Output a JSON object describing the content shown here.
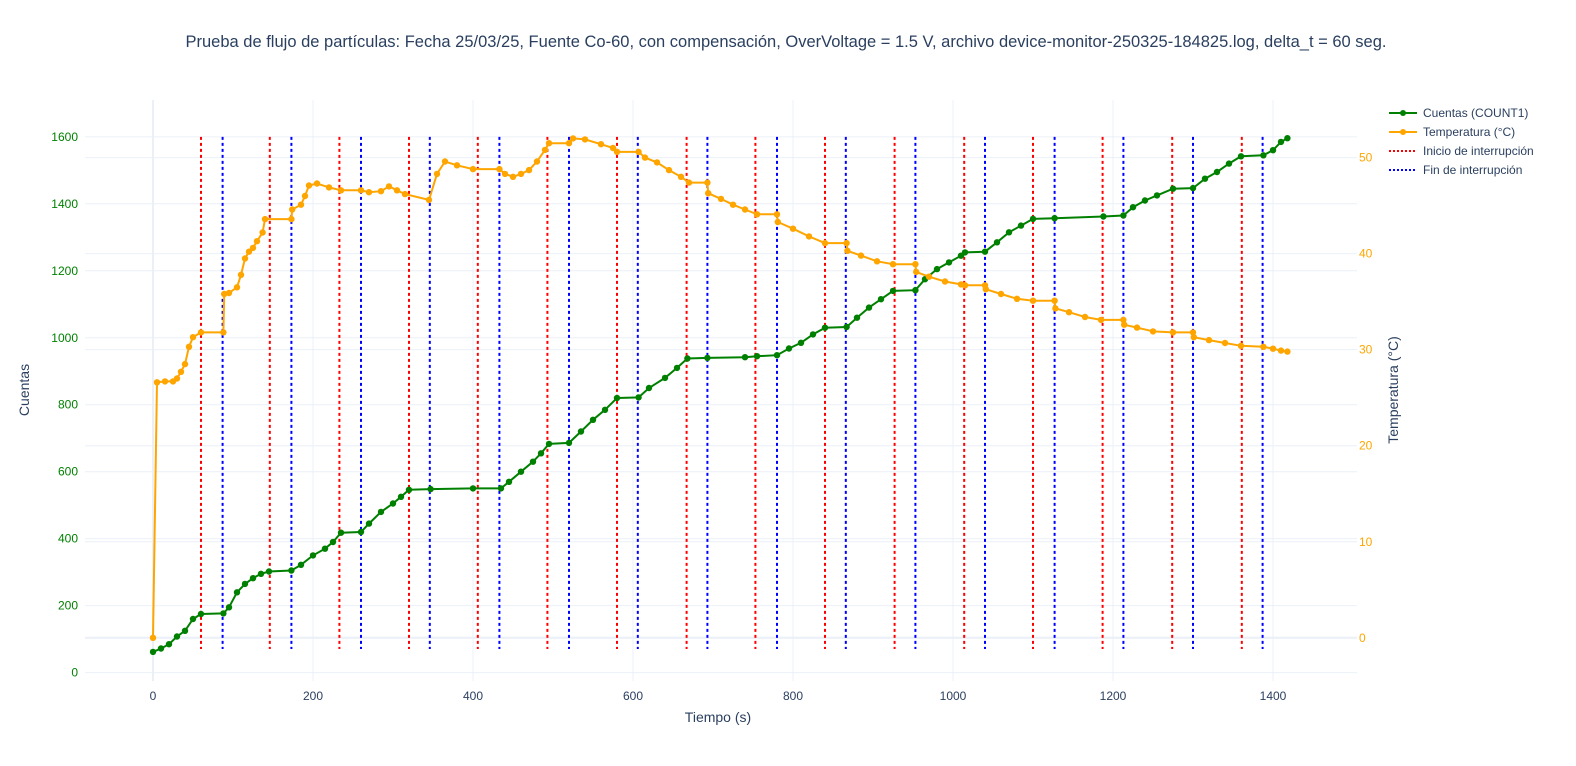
{
  "chart_data": {
    "type": "line",
    "title": "Prueba de flujo de partículas: Fecha 25/03/25, Fuente Co-60, con compensación, OverVoltage = 1.5 V, archivo device-monitor-250325-184825.log, delta_t = 60 seg.",
    "xlabel": "Tiempo (s)",
    "ylabel": "Cuentas",
    "y2label": "Temperatura (°C)",
    "xlim": [
      -85,
      1505
    ],
    "ylim": [
      -25,
      1710
    ],
    "y2lim": [
      -4.5,
      56
    ],
    "x_ticks": [
      0,
      200,
      400,
      600,
      800,
      1000,
      1200,
      1400
    ],
    "y_ticks": [
      0,
      200,
      400,
      600,
      800,
      1000,
      1200,
      1400,
      1600
    ],
    "y2_ticks": [
      0,
      10,
      20,
      30,
      40,
      50
    ],
    "grid": true,
    "legend_position": "top-right",
    "colors": {
      "counts": "#008000",
      "temperature": "#FFA500",
      "start": "#FF0000",
      "end": "#0000FF",
      "text": "#2a3f5f",
      "grid": "#EBF0F8"
    },
    "series": [
      {
        "name": "Cuentas (COUNT1)",
        "axis": "y",
        "color": "#008000",
        "mode": "lines+markers",
        "points": [
          [
            0,
            62
          ],
          [
            10,
            72
          ],
          [
            20,
            85
          ],
          [
            30,
            108
          ],
          [
            40,
            125
          ],
          [
            50,
            160
          ],
          [
            60,
            175
          ],
          [
            88,
            177
          ],
          [
            95,
            195
          ],
          [
            105,
            240
          ],
          [
            115,
            265
          ],
          [
            125,
            282
          ],
          [
            135,
            295
          ],
          [
            145,
            302
          ],
          [
            173,
            305
          ],
          [
            185,
            322
          ],
          [
            200,
            350
          ],
          [
            215,
            370
          ],
          [
            225,
            390
          ],
          [
            235,
            418
          ],
          [
            260,
            420
          ],
          [
            270,
            445
          ],
          [
            285,
            480
          ],
          [
            300,
            505
          ],
          [
            310,
            525
          ],
          [
            320,
            546
          ],
          [
            347,
            548
          ],
          [
            400,
            550
          ],
          [
            435,
            550
          ],
          [
            445,
            570
          ],
          [
            460,
            600
          ],
          [
            475,
            630
          ],
          [
            485,
            655
          ],
          [
            495,
            683
          ],
          [
            520,
            686
          ],
          [
            535,
            720
          ],
          [
            550,
            755
          ],
          [
            565,
            785
          ],
          [
            580,
            820
          ],
          [
            607,
            822
          ],
          [
            620,
            850
          ],
          [
            640,
            880
          ],
          [
            655,
            910
          ],
          [
            668,
            938
          ],
          [
            693,
            940
          ],
          [
            740,
            942
          ],
          [
            755,
            945
          ],
          [
            780,
            948
          ],
          [
            795,
            968
          ],
          [
            810,
            985
          ],
          [
            825,
            1010
          ],
          [
            840,
            1030
          ],
          [
            867,
            1032
          ],
          [
            880,
            1060
          ],
          [
            895,
            1090
          ],
          [
            910,
            1115
          ],
          [
            925,
            1140
          ],
          [
            953,
            1142
          ],
          [
            965,
            1175
          ],
          [
            980,
            1205
          ],
          [
            995,
            1225
          ],
          [
            1010,
            1245
          ],
          [
            1015,
            1255
          ],
          [
            1040,
            1257
          ],
          [
            1055,
            1285
          ],
          [
            1070,
            1315
          ],
          [
            1085,
            1335
          ],
          [
            1100,
            1355
          ],
          [
            1127,
            1357
          ],
          [
            1188,
            1362
          ],
          [
            1213,
            1365
          ],
          [
            1225,
            1390
          ],
          [
            1240,
            1410
          ],
          [
            1255,
            1425
          ],
          [
            1275,
            1445
          ],
          [
            1300,
            1447
          ],
          [
            1315,
            1475
          ],
          [
            1330,
            1495
          ],
          [
            1345,
            1520
          ],
          [
            1360,
            1542
          ],
          [
            1388,
            1545
          ],
          [
            1400,
            1560
          ],
          [
            1410,
            1585
          ],
          [
            1418,
            1596
          ]
        ]
      },
      {
        "name": "Temperatura (°C)",
        "axis": "y2",
        "color": "#FFA500",
        "mode": "lines+markers",
        "points": [
          [
            0,
            0
          ],
          [
            5,
            26.6
          ],
          [
            15,
            26.7
          ],
          [
            25,
            26.7
          ],
          [
            30,
            27
          ],
          [
            35,
            27.7
          ],
          [
            40,
            28.5
          ],
          [
            45,
            30.3
          ],
          [
            50,
            31.3
          ],
          [
            60,
            31.8
          ],
          [
            88,
            31.8
          ],
          [
            89,
            35.8
          ],
          [
            95,
            35.9
          ],
          [
            105,
            36.5
          ],
          [
            110,
            37.8
          ],
          [
            115,
            39.5
          ],
          [
            120,
            40.2
          ],
          [
            125,
            40.6
          ],
          [
            130,
            41.3
          ],
          [
            137,
            42.2
          ],
          [
            140,
            43.6
          ],
          [
            173,
            43.6
          ],
          [
            174,
            44.6
          ],
          [
            185,
            45.1
          ],
          [
            190,
            46
          ],
          [
            195,
            47.1
          ],
          [
            205,
            47.3
          ],
          [
            220,
            46.9
          ],
          [
            235,
            46.6
          ],
          [
            260,
            46.6
          ],
          [
            270,
            46.4
          ],
          [
            285,
            46.5
          ],
          [
            295,
            47
          ],
          [
            305,
            46.6
          ],
          [
            315,
            46.2
          ],
          [
            345,
            45.6
          ],
          [
            355,
            48.3
          ],
          [
            365,
            49.6
          ],
          [
            380,
            49.2
          ],
          [
            400,
            48.8
          ],
          [
            433,
            48.8
          ],
          [
            440,
            48.3
          ],
          [
            450,
            48
          ],
          [
            460,
            48.3
          ],
          [
            470,
            48.7
          ],
          [
            480,
            49.6
          ],
          [
            490,
            50.8
          ],
          [
            495,
            51.5
          ],
          [
            520,
            51.5
          ],
          [
            525,
            52
          ],
          [
            540,
            51.9
          ],
          [
            560,
            51.4
          ],
          [
            575,
            51
          ],
          [
            580,
            50.6
          ],
          [
            607,
            50.6
          ],
          [
            615,
            50
          ],
          [
            630,
            49.5
          ],
          [
            645,
            48.7
          ],
          [
            660,
            48
          ],
          [
            670,
            47.4
          ],
          [
            693,
            47.4
          ],
          [
            694,
            46.3
          ],
          [
            710,
            45.7
          ],
          [
            725,
            45.1
          ],
          [
            740,
            44.6
          ],
          [
            755,
            44.1
          ],
          [
            780,
            44.1
          ],
          [
            781,
            43.3
          ],
          [
            800,
            42.6
          ],
          [
            820,
            41.8
          ],
          [
            840,
            41.1
          ],
          [
            867,
            41.1
          ],
          [
            868,
            40.3
          ],
          [
            885,
            39.8
          ],
          [
            905,
            39.2
          ],
          [
            925,
            38.9
          ],
          [
            953,
            38.9
          ],
          [
            954,
            38.1
          ],
          [
            970,
            37.6
          ],
          [
            990,
            37.1
          ],
          [
            1010,
            36.8
          ],
          [
            1015,
            36.7
          ],
          [
            1040,
            36.7
          ],
          [
            1041,
            36.3
          ],
          [
            1060,
            35.8
          ],
          [
            1080,
            35.3
          ],
          [
            1100,
            35.1
          ],
          [
            1127,
            35.1
          ],
          [
            1128,
            34.3
          ],
          [
            1145,
            33.9
          ],
          [
            1165,
            33.4
          ],
          [
            1185,
            33.1
          ],
          [
            1213,
            33.1
          ],
          [
            1214,
            32.6
          ],
          [
            1230,
            32.3
          ],
          [
            1250,
            31.9
          ],
          [
            1275,
            31.8
          ],
          [
            1300,
            31.8
          ],
          [
            1301,
            31.3
          ],
          [
            1320,
            31
          ],
          [
            1340,
            30.7
          ],
          [
            1360,
            30.4
          ],
          [
            1388,
            30.3
          ],
          [
            1400,
            30.1
          ],
          [
            1410,
            29.9
          ],
          [
            1418,
            29.8
          ]
        ]
      }
    ],
    "vlines": [
      {
        "name": "Inicio de interrupción",
        "color": "#FF0000",
        "x": [
          60,
          146,
          233,
          320,
          406,
          493,
          580,
          667,
          753,
          840,
          927,
          1014,
          1100,
          1187,
          1274,
          1361
        ]
      },
      {
        "name": "Fin de interrupción",
        "color": "#0000FF",
        "x": [
          87,
          173,
          260,
          346,
          433,
          520,
          606,
          693,
          780,
          866,
          953,
          1040,
          1127,
          1213,
          1300,
          1387
        ]
      }
    ],
    "legend": [
      "Cuentas (COUNT1)",
      "Temperatura (°C)",
      "Inicio de interrupción",
      "Fin de interrupción"
    ]
  }
}
